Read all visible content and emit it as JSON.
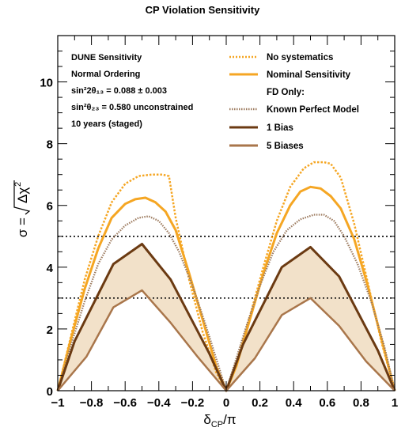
{
  "chart_data": {
    "type": "line",
    "title": "CP Violation Sensitivity",
    "xlabel": "δCP/π",
    "ylabel": "σ = √Δχ²",
    "xlim": [
      -1,
      1
    ],
    "ylim": [
      0,
      11.5
    ],
    "x_ticks": [
      "−1",
      "−0.8",
      "−0.6",
      "−0.4",
      "−0.2",
      "0",
      "0.2",
      "0.4",
      "0.6",
      "0.8",
      "1"
    ],
    "y_ticks": [
      "0",
      "2",
      "4",
      "6",
      "8",
      "10"
    ],
    "annotations": {
      "line1": "DUNE Sensitivity",
      "line2": "Normal Ordering",
      "line3": "sin²2θ₁₃ = 0.088 ± 0.003",
      "line4": "sin²θ₂₃ = 0.580 unconstrained",
      "line5": "10 years (staged)"
    },
    "legend_placement": "top-right",
    "legend_header": "FD Only:",
    "reference_lines": [
      3,
      5
    ],
    "series": [
      {
        "name": "No systematics",
        "color": "#f5a623",
        "style": "dotted",
        "x": [
          -1,
          -0.92,
          -0.84,
          -0.76,
          -0.68,
          -0.6,
          -0.52,
          -0.44,
          -0.38,
          -0.34,
          -0.3,
          -0.22,
          -0.14,
          -0.06,
          0,
          0.06,
          0.14,
          0.22,
          0.3,
          0.38,
          0.46,
          0.52,
          0.58,
          0.62,
          0.68,
          0.76,
          0.84,
          0.92,
          1
        ],
        "values": [
          0,
          1.8,
          3.6,
          5.0,
          6.1,
          6.7,
          6.95,
          7.0,
          7.0,
          6.95,
          5.6,
          3.6,
          1.9,
          0.6,
          0,
          0.9,
          2.4,
          4.0,
          5.5,
          6.6,
          7.2,
          7.4,
          7.4,
          7.35,
          6.9,
          5.4,
          3.5,
          1.6,
          0
        ]
      },
      {
        "name": "Nominal Sensitivity",
        "color": "#f5a623",
        "style": "solid",
        "x": [
          -1,
          -0.92,
          -0.84,
          -0.76,
          -0.68,
          -0.6,
          -0.54,
          -0.48,
          -0.42,
          -0.36,
          -0.3,
          -0.22,
          -0.14,
          -0.06,
          0,
          0.06,
          0.14,
          0.22,
          0.3,
          0.38,
          0.44,
          0.5,
          0.56,
          0.62,
          0.68,
          0.76,
          0.84,
          0.92,
          1
        ],
        "values": [
          0,
          1.7,
          3.3,
          4.6,
          5.6,
          6.05,
          6.2,
          6.25,
          6.1,
          5.8,
          5.2,
          3.8,
          2.3,
          0.8,
          0,
          0.8,
          2.3,
          3.8,
          5.1,
          6.0,
          6.45,
          6.6,
          6.55,
          6.3,
          5.9,
          4.9,
          3.4,
          1.7,
          0
        ]
      },
      {
        "name": "Known Perfect Model",
        "color": "#9c7a5e",
        "style": "dotted",
        "x": [
          -1,
          -0.92,
          -0.84,
          -0.76,
          -0.68,
          -0.6,
          -0.52,
          -0.46,
          -0.4,
          -0.34,
          -0.28,
          -0.2,
          -0.12,
          -0.04,
          0,
          0.04,
          0.12,
          0.2,
          0.28,
          0.36,
          0.44,
          0.52,
          0.58,
          0.64,
          0.7,
          0.78,
          0.86,
          0.94,
          1
        ],
        "values": [
          0,
          1.5,
          2.9,
          4.1,
          4.9,
          5.35,
          5.6,
          5.65,
          5.5,
          5.1,
          4.5,
          3.4,
          2.1,
          0.7,
          0,
          0.7,
          2.1,
          3.4,
          4.5,
          5.2,
          5.55,
          5.7,
          5.7,
          5.5,
          5.0,
          4.1,
          2.9,
          1.4,
          0
        ]
      },
      {
        "name": "1 Bias",
        "color": "#6b3a12",
        "style": "solid",
        "x": [
          -1,
          -0.9,
          -0.67,
          -0.5,
          -0.33,
          -0.1,
          0,
          0.1,
          0.33,
          0.5,
          0.67,
          0.9,
          1
        ],
        "values": [
          0,
          1.6,
          4.1,
          4.75,
          3.6,
          1.2,
          0,
          1.5,
          4.0,
          4.65,
          3.7,
          1.3,
          0
        ]
      },
      {
        "name": "5 Biases",
        "color": "#a9764b",
        "style": "solid",
        "x": [
          -1,
          -0.83,
          -0.67,
          -0.5,
          -0.33,
          -0.17,
          0,
          0.17,
          0.33,
          0.5,
          0.67,
          0.83,
          1
        ],
        "values": [
          0,
          1.1,
          2.7,
          3.25,
          2.2,
          1.1,
          0,
          1.05,
          2.45,
          3.0,
          2.1,
          0.95,
          0
        ]
      }
    ]
  }
}
